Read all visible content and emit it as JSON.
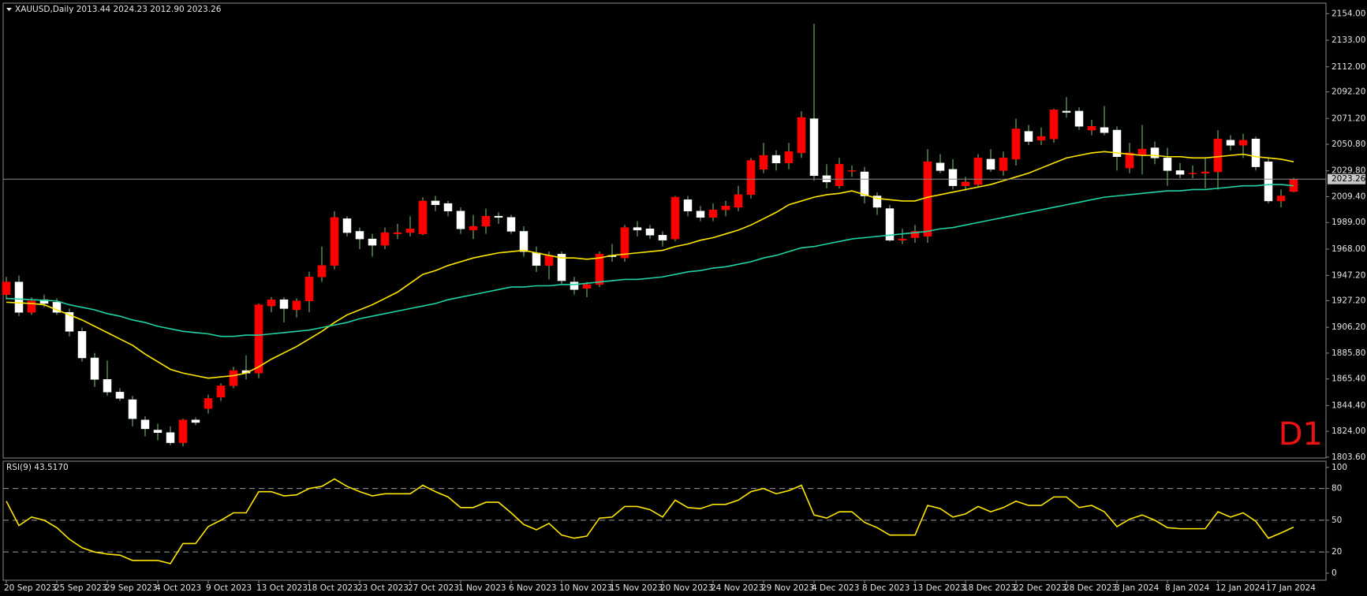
{
  "chart_data": [
    {
      "type": "candlestick",
      "title": "XAUUSD,Daily 2013.44 2024.23 2012.90 2023.26",
      "categories": [
        "20 Sep 2023",
        null,
        null,
        null,
        "25 Sep 2023",
        null,
        null,
        null,
        "29 Sep 2023",
        null,
        null,
        null,
        "4 Oct 2023",
        null,
        null,
        null,
        "9 Oct 2023",
        null,
        null,
        null,
        "13 Oct 2023",
        null,
        null,
        null,
        "18 Oct 2023",
        null,
        null,
        null,
        "23 Oct 2023",
        null,
        null,
        null,
        "27 Oct 2023",
        null,
        null,
        null,
        "1 Nov 2023",
        null,
        null,
        null,
        "6 Nov 2023",
        null,
        null,
        null,
        "10 Nov 2023",
        null,
        null,
        null,
        "15 Nov 2023",
        null,
        null,
        null,
        "20 Nov 2023",
        null,
        null,
        null,
        "24 Nov 2023",
        null,
        null,
        null,
        "29 Nov 2023",
        null,
        null,
        null,
        "4 Dec 2023",
        null,
        null,
        null,
        "8 Dec 2023",
        null,
        null,
        null,
        "13 Dec 2023",
        null,
        null,
        null,
        "18 Dec 2023",
        null,
        null,
        null,
        "22 Dec 2023",
        null,
        null,
        null,
        "28 Dec 2023",
        null,
        null,
        null,
        "3 Jan 2024",
        null,
        null,
        null,
        "8 Jan 2024",
        null,
        null,
        null,
        "12 Jan 2024",
        null,
        null,
        null,
        "17 Jan 2024",
        null,
        null
      ],
      "open": [
        1932,
        1942,
        1918,
        1928,
        1926,
        1918,
        1903,
        1882,
        1865,
        1855,
        1849,
        1833,
        1825,
        1823,
        1815,
        1833,
        1842,
        1851,
        1860,
        1872,
        1870,
        1923,
        1928,
        1920,
        1927,
        1946,
        1955,
        1992,
        1982,
        1976,
        1971,
        1980,
        1981,
        1980,
        2006,
        2004,
        1998,
        1983,
        1986,
        1994,
        1993,
        1982,
        1965,
        1955,
        1964,
        1942,
        1937,
        1940,
        1963,
        1961,
        1985,
        1984,
        1979,
        1976,
        2007,
        1998,
        1993,
        1999,
        2001,
        2011,
        2031,
        2042,
        2036,
        2044,
        2071,
        2026,
        2018,
        2030,
        2029,
        2010,
        2000,
        1975,
        1977,
        1978,
        2036,
        2031,
        2018,
        2019,
        2039,
        2030,
        2039,
        2061,
        2054,
        2055,
        2077,
        2077,
        2062,
        2064,
        2062,
        2032,
        2042,
        2048,
        2040,
        2030,
        2028,
        2028,
        2029,
        2054,
        2050,
        2055,
        2037,
        2006,
        2013.44
      ],
      "high": [
        1946,
        1947,
        1930,
        1932,
        1929,
        1921,
        1906,
        1886,
        1880,
        1858,
        1852,
        1836,
        1830,
        1828,
        1834,
        1835,
        1853,
        1862,
        1875,
        1884,
        1925,
        1930,
        1930,
        1929,
        1950,
        1970,
        1998,
        1994,
        1985,
        1980,
        1985,
        1988,
        1994,
        2009,
        2010,
        2006,
        2001,
        1995,
        2000,
        1997,
        1995,
        1986,
        1970,
        1966,
        1966,
        1946,
        1942,
        1966,
        1972,
        1987,
        1990,
        1987,
        1982,
        2010,
        2010,
        2002,
        2004,
        2006,
        2018,
        2040,
        2052,
        2046,
        2052,
        2077,
        2146,
        2035,
        2040,
        2034,
        2033,
        2013,
        2003,
        1984,
        1987,
        2047,
        2043,
        2039,
        2025,
        2043,
        2047,
        2045,
        2071,
        2066,
        2064,
        2079,
        2088,
        2080,
        2070,
        2081,
        2065,
        2052,
        2066,
        2053,
        2048,
        2036,
        2034,
        2040,
        2062,
        2058,
        2059,
        2057,
        2040,
        2015,
        2024.23
      ],
      "low": [
        1928,
        1915,
        1916,
        1922,
        1916,
        1899,
        1879,
        1859,
        1852,
        1848,
        1828,
        1820,
        1817,
        1813,
        1812,
        1829,
        1838,
        1848,
        1858,
        1865,
        1866,
        1918,
        1910,
        1914,
        1918,
        1942,
        1952,
        1978,
        1968,
        1962,
        1968,
        1976,
        1978,
        1979,
        1998,
        1994,
        1980,
        1976,
        1980,
        1988,
        1980,
        1962,
        1950,
        1944,
        1940,
        1932,
        1930,
        1938,
        1958,
        1958,
        1978,
        1976,
        1970,
        1974,
        1994,
        1990,
        1990,
        1994,
        1998,
        2008,
        2028,
        2030,
        2031,
        2040,
        2022,
        2016,
        2016,
        2025,
        2004,
        1995,
        1974,
        1972,
        1973,
        1973,
        2028,
        2015,
        2014,
        2017,
        2029,
        2026,
        2034,
        2050,
        2050,
        2052,
        2072,
        2062,
        2058,
        2058,
        2030,
        2028,
        2027,
        2035,
        2018,
        2024,
        2024,
        2016,
        2015,
        2046,
        2040,
        2030,
        2004,
        2001,
        2012.9
      ],
      "close": [
        1942,
        1918,
        1927,
        1925,
        1918,
        1903,
        1882,
        1865,
        1855,
        1850,
        1834,
        1826,
        1823,
        1815,
        1833,
        1831,
        1850,
        1860,
        1872,
        1870,
        1924,
        1928,
        1921,
        1927,
        1946,
        1955,
        1993,
        1981,
        1976,
        1971,
        1981,
        1981,
        1984,
        2006,
        2003,
        1998,
        1984,
        1986,
        1994,
        1993,
        1982,
        1966,
        1955,
        1963,
        1943,
        1936,
        1940,
        1964,
        1962,
        1985,
        1983,
        1979,
        1975,
        2009,
        1998,
        1993,
        1999,
        2002,
        2011,
        2038,
        2042,
        2036,
        2045,
        2072,
        2026,
        2021,
        2035,
        2030,
        2010,
        2001,
        1975,
        1976,
        1982,
        2037,
        2030,
        2018,
        2021,
        2040,
        2031,
        2040,
        2063,
        2053,
        2057,
        2078,
        2076,
        2065,
        2065,
        2060,
        2041,
        2044,
        2047,
        2040,
        2030,
        2027,
        2028,
        2029,
        2055,
        2050,
        2054,
        2033,
        2006,
        2010,
        2023.26
      ],
      "up_color": "#ff0000",
      "down_color": "#ffffff",
      "wick_color": "#7fc97f",
      "lines": [
        {
          "color": "#ffe600",
          "values": [
            1926,
            1925.5,
            1925,
            1924,
            1920,
            1916,
            1912,
            1907,
            1902,
            1897,
            1892,
            1885,
            1879,
            1873,
            1870,
            1868,
            1866,
            1867,
            1868,
            1870,
            1875,
            1881,
            1886,
            1891,
            1897,
            1903,
            1910,
            1916,
            1920,
            1924,
            1929,
            1934,
            1941,
            1948,
            1951,
            1955,
            1958,
            1961,
            1963,
            1965,
            1966,
            1967,
            1965,
            1963,
            1961,
            1961,
            1960,
            1961,
            1963,
            1964,
            1965,
            1966,
            1967,
            1970,
            1972,
            1975,
            1977,
            1980,
            1983,
            1987,
            1992,
            1997,
            2003,
            2006,
            2009,
            2011,
            2012,
            2014,
            2011,
            2008,
            2007,
            2006,
            2006,
            2009,
            2011,
            2013,
            2015,
            2017,
            2019,
            2022,
            2025,
            2028,
            2032,
            2036,
            2040,
            2042,
            2044,
            2045,
            2044,
            2043,
            2042,
            2042,
            2041,
            2041,
            2040,
            2040,
            2041,
            2042,
            2043,
            2041,
            2040,
            2039,
            2037
          ]
        },
        {
          "color": "#1fd3a4",
          "values": [
            1929,
            1928.5,
            1928,
            1927.5,
            1927,
            1924,
            1922,
            1920,
            1917,
            1915,
            1912,
            1910,
            1907,
            1905,
            1903,
            1902,
            1901,
            1899,
            1899,
            1900,
            1900,
            1901,
            1902,
            1903,
            1904,
            1906,
            1908,
            1910,
            1913,
            1915,
            1917,
            1919,
            1921,
            1923,
            1925,
            1928,
            1930,
            1932,
            1934,
            1936,
            1938,
            1938,
            1939,
            1939,
            1940,
            1940,
            1941,
            1942,
            1943,
            1944,
            1944,
            1945,
            1946,
            1948,
            1950,
            1951,
            1953,
            1954,
            1956,
            1958,
            1961,
            1963,
            1966,
            1969,
            1970,
            1972,
            1974,
            1976,
            1977,
            1978,
            1979,
            1980,
            1981,
            1982,
            1984,
            1985,
            1987,
            1989,
            1991,
            1993,
            1995,
            1997,
            1999,
            2001,
            2003,
            2005,
            2007,
            2009,
            2010,
            2011,
            2012,
            2013,
            2014,
            2014,
            2015,
            2015,
            2016,
            2017,
            2018,
            2018,
            2019,
            2019,
            2018
          ]
        }
      ],
      "price_line": 2023.26,
      "price_line_color": "#8a8a8a",
      "annotation": "D1",
      "annotation_color": "#ee1111",
      "ylim": [
        1802.9,
        2162.3
      ],
      "yticks": [
        {
          "value": 2154.0,
          "label": "2154.00"
        },
        {
          "value": 2133.0,
          "label": "2133.00"
        },
        {
          "value": 2112.0,
          "label": "2112.00"
        },
        {
          "value": 2092.2,
          "label": "2092.20"
        },
        {
          "value": 2071.2,
          "label": "2071.20"
        },
        {
          "value": 2050.8,
          "label": "2050.80"
        },
        {
          "value": 2029.8,
          "label": "2029.80"
        },
        {
          "value": 2009.4,
          "label": "2009.40"
        },
        {
          "value": 1989.0,
          "label": "1989.00"
        },
        {
          "value": 1968.0,
          "label": "1968.00"
        },
        {
          "value": 1947.2,
          "label": "1947.20"
        },
        {
          "value": 1927.2,
          "label": "1927.20"
        },
        {
          "value": 1906.2,
          "label": "1906.20"
        },
        {
          "value": 1885.8,
          "label": "1885.80"
        },
        {
          "value": 1865.4,
          "label": "1865.40"
        },
        {
          "value": 1844.4,
          "label": "1844.40"
        },
        {
          "value": 1824.0,
          "label": "1824.00"
        },
        {
          "value": 1803.6,
          "label": "1803.60"
        }
      ]
    },
    {
      "type": "line",
      "title": "RSI(9) 43.5170",
      "color": "#ffe600",
      "values": [
        68,
        45,
        53,
        50,
        43,
        32,
        24,
        20,
        18,
        17,
        12,
        12,
        12,
        9,
        28,
        28,
        44,
        50,
        57,
        57,
        77,
        77,
        73,
        74,
        80,
        82,
        89,
        82,
        77,
        73,
        75,
        75,
        75,
        83,
        77,
        72,
        62,
        62,
        67,
        67,
        57,
        46,
        41,
        47,
        36,
        33,
        35,
        52,
        53,
        63,
        63,
        60,
        53,
        69,
        62,
        61,
        65,
        65,
        69,
        77,
        80,
        75,
        78,
        83,
        55,
        52,
        58,
        58,
        48,
        43,
        36,
        36,
        36,
        64,
        61,
        53,
        56,
        63,
        58,
        62,
        68,
        64,
        64,
        72,
        72,
        62,
        64,
        58,
        44,
        51,
        55,
        50,
        43,
        42,
        42,
        42,
        58,
        53,
        57,
        49,
        33,
        38,
        43.517
      ],
      "levels": [
        80,
        50,
        20
      ],
      "ylim": [
        -6.7,
        105.8
      ],
      "yticks": [
        100,
        80,
        50,
        20,
        0
      ]
    }
  ]
}
